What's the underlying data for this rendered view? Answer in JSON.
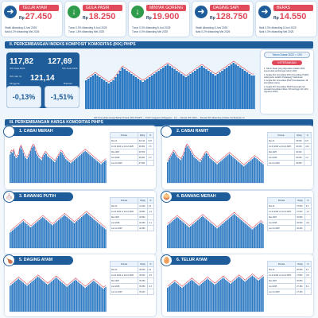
{
  "cards": [
    {
      "name": "TELUR AYAM",
      "currency": "Rp",
      "price": "27.450",
      "arrow": "➜",
      "color": "#1e5d99",
      "note1": "Stabil dibanding 8 Juni 2025",
      "note2": "Naik 6,2% dibanding Mei 2025"
    },
    {
      "name": "GULA PASIR",
      "currency": "Rp",
      "price": "18.250",
      "arrow": "↓",
      "color": "#2e9c4a",
      "note1": "Turun 0,3% dibanding 8 Juni 2025",
      "note2": "Turun 1,8% dibanding Mei 2025"
    },
    {
      "name": "MINYAK GORENG",
      "currency": "Rp",
      "price": "19.900",
      "arrow": "↓",
      "color": "#2e9c4a",
      "note1": "Turun 0,3% dibanding 8 Juni 2025",
      "note2": "Turun 0,3% dibanding Mei 2025"
    },
    {
      "name": "DAGING SAPI",
      "currency": "Rp",
      "price": "128.750",
      "arrow": "➜",
      "color": "#1e5d99",
      "note1": "Stabil dibanding 8 Juni 2025",
      "note2": "Naik 0,2% dibanding Mei 2025"
    },
    {
      "name": "BERAS",
      "currency": "Rp",
      "price": "14.550",
      "arrow": "➜",
      "color": "#1e5d99",
      "note1": "Naik 0,3% dibanding 8 Juni 2025",
      "note2": "Naik 0,3% dibanding Mei 2025"
    }
  ],
  "section2": {
    "title": "II. PERKEMBANGAN INDEKS KOMPOSIT KOMODITAS (IKK) PIHPS"
  },
  "ikk": {
    "v1": "117,82",
    "l1": "IKK Awal 2024",
    "v2": "127,69",
    "l2": "IKK Awal 2025",
    "v3": "121,14",
    "l3": "IKK Hari Ini",
    "c1": "-0,13%",
    "c1label": "Mingguan",
    "c2": "-1,51%",
    "c2label": "Bulanan"
  },
  "legend": "IKK Komoditas Harga Bahan Pokok (IKK) PIHPS  — Profil mingguan (Mingguan . ini)  — Rerata IKK 2024  — Rerata IKK dibanding (Indeks ini) Bulanan ini",
  "notes": {
    "badge": "Tahun Dasar 2022 = 100",
    "title": "KETERANGAN",
    "items": [
      "1. Tahun dasar yang digunakan adalah 2022, sesuai data perhitungan tahun 2022",
      "2. Angka IKK Komoditas (IKK) Komoditas PIHPS pada posisi terakhir Pedagang Tradisional",
      "3. Angka IKK Komoditas PIHPS berdasarkan 18 komoditas utama",
      "4. Angka IKK Komoditas PIHPS terendah 4/1 tercatat Komoditas Inflasi, IKK tertinggi 121,14% (Agustus 2025)"
    ]
  },
  "section3": {
    "title": "III. PERKEMBANGAN HARGA KOMODITAS PIHPS"
  },
  "panels": [
    {
      "title": "1. CABAI MERAH",
      "icon": "🌶",
      "hdr": [
        "Periode",
        "Rp/kg",
        "%"
      ],
      "rows": [
        [
          "Mei 24",
          "52.140",
          "0,07"
        ],
        [
          "21-31 2024 vs 10-14 2025",
          "48.000",
          "-7,9"
        ],
        [
          "Mei 2025",
          "38.750",
          ""
        ],
        [
          "Juni 2025",
          "38.250",
          "-1,3"
        ],
        [
          "Juni Ini 2025",
          "37.500",
          ""
        ]
      ],
      "chart_data": {
        "type": "bar",
        "values": [
          55,
          60,
          58,
          62,
          52,
          48,
          50,
          54,
          66,
          70,
          64,
          58,
          52,
          48,
          46,
          50,
          56,
          62,
          68,
          72,
          70,
          62,
          56,
          52,
          48,
          46,
          44,
          50,
          54,
          58,
          56,
          52,
          50,
          48,
          46,
          44,
          42,
          40,
          44,
          48,
          52,
          56,
          60,
          58,
          54,
          50,
          46,
          44,
          42,
          40,
          38,
          40,
          42,
          44,
          46,
          48,
          50,
          52,
          54,
          56,
          58,
          60,
          62,
          60,
          58,
          56,
          54,
          52,
          50,
          48,
          46,
          44,
          42,
          40,
          38,
          36,
          38,
          40,
          42,
          44
        ],
        "ylim": [
          0,
          80
        ]
      }
    },
    {
      "title": "2. CABAI RAWIT",
      "icon": "🌶",
      "hdr": [
        "Periode",
        "Rp/kg",
        "%"
      ],
      "rows": [
        [
          "Mei 24",
          "49.500",
          "0,07"
        ],
        [
          "21-31 2024 vs 10-14 2025",
          "43.000",
          "-13,1"
        ],
        [
          "Mei 2025",
          "36.500",
          ""
        ],
        [
          "Juni 2025",
          "36.050",
          "-1,2"
        ],
        [
          "Juni Ini 2025",
          "35.850",
          ""
        ]
      ],
      "chart_data": {
        "type": "bar",
        "values": [
          40,
          44,
          48,
          52,
          56,
          60,
          58,
          54,
          50,
          48,
          46,
          44,
          48,
          52,
          60,
          68,
          72,
          70,
          66,
          62,
          58,
          54,
          50,
          48,
          46,
          44,
          42,
          40,
          44,
          48,
          52,
          56,
          58,
          56,
          52,
          48,
          46,
          44,
          42,
          40,
          38,
          36,
          38,
          40,
          42,
          44,
          46,
          48,
          50,
          52,
          54,
          56,
          54,
          52,
          50,
          48,
          46,
          44,
          42,
          40,
          38,
          36,
          34,
          32,
          34,
          36,
          38,
          40,
          42,
          44,
          46,
          48,
          50,
          48,
          46,
          44,
          42,
          40,
          38,
          36
        ],
        "ylim": [
          0,
          80
        ]
      }
    },
    {
      "title": "3. BAWANG PUTIH",
      "icon": "🧄",
      "hdr": [
        "Periode",
        "Rp/kg",
        "%"
      ],
      "rows": [
        [
          "Mei 24",
          "41.250",
          "0,4"
        ],
        [
          "21-31 2024 vs 10-14 2025",
          "40.850",
          "-1,0"
        ],
        [
          "Mei 2025",
          "40.500",
          ""
        ],
        [
          "Juni 2025",
          "40.450",
          "-0,1"
        ],
        [
          "Juni Ini 2025",
          "40.350",
          ""
        ]
      ],
      "chart_data": {
        "type": "bar",
        "values": [
          30,
          32,
          34,
          36,
          38,
          40,
          42,
          44,
          46,
          48,
          50,
          52,
          50,
          48,
          46,
          44,
          42,
          40,
          42,
          44,
          46,
          48,
          50,
          52,
          54,
          56,
          58,
          60,
          58,
          56,
          54,
          52,
          50,
          48,
          46,
          44,
          46,
          48,
          50,
          52,
          54,
          56,
          58,
          60,
          62,
          64,
          62,
          60,
          58,
          56,
          54,
          52,
          50,
          48,
          50,
          52,
          54,
          56,
          58,
          60,
          62,
          64,
          66,
          68,
          66,
          64,
          62,
          60,
          58,
          56,
          54,
          52,
          50,
          48,
          46,
          44,
          42,
          40,
          38,
          36
        ],
        "ylim": [
          0,
          80
        ]
      }
    },
    {
      "title": "4. BAWANG MERAH",
      "icon": "🧅",
      "hdr": [
        "Periode",
        "Rp/kg",
        "%"
      ],
      "rows": [
        [
          "Mei 24",
          "37.500",
          "0,3"
        ],
        [
          "21-31 2024 vs 10-14 2025",
          "37.000",
          "-1,3"
        ],
        [
          "Mei 2025",
          "36.850",
          ""
        ],
        [
          "Juni 2025",
          "36.500",
          "-0,9"
        ],
        [
          "Juni Ini 2025",
          "36.250",
          ""
        ]
      ],
      "chart_data": {
        "type": "bar",
        "values": [
          44,
          46,
          48,
          50,
          52,
          54,
          56,
          58,
          60,
          58,
          56,
          54,
          52,
          50,
          48,
          46,
          44,
          42,
          40,
          42,
          44,
          46,
          48,
          50,
          52,
          54,
          56,
          58,
          60,
          62,
          60,
          58,
          56,
          54,
          52,
          50,
          48,
          46,
          44,
          42,
          40,
          38,
          40,
          42,
          44,
          46,
          48,
          50,
          52,
          54,
          56,
          58,
          60,
          62,
          64,
          66,
          64,
          62,
          60,
          58,
          56,
          54,
          52,
          50,
          48,
          46,
          44,
          42,
          40,
          38,
          36,
          38,
          40,
          42,
          44,
          46,
          48,
          50,
          48,
          46
        ],
        "ylim": [
          0,
          80
        ]
      }
    },
    {
      "title": "5. DAGING AYAM",
      "icon": "🍗",
      "hdr": [
        "Periode",
        "Rp/kg",
        "%"
      ],
      "rows": [
        [
          "Mei 24",
          "38.250",
          "0,2"
        ],
        [
          "21-31 2024 vs 10-14 2025",
          "36.900",
          "-3,5"
        ],
        [
          "Mei 2025",
          "35.450",
          ""
        ],
        [
          "Juni 2025",
          "35.350",
          "-0,3"
        ],
        [
          "Juni Ini 2025",
          "35.200",
          ""
        ]
      ],
      "chart_data": {
        "type": "bar",
        "values": [
          50,
          52,
          54,
          56,
          58,
          60,
          62,
          64,
          62,
          60,
          58,
          56,
          54,
          52,
          50,
          52,
          54,
          56,
          58,
          60,
          62,
          64,
          66,
          68,
          66,
          64,
          62,
          60,
          58,
          56,
          54,
          52,
          54,
          56,
          58,
          60,
          62,
          64,
          66,
          64,
          62,
          60,
          58,
          56,
          54,
          52,
          50,
          48,
          50,
          52,
          54,
          56,
          58,
          60,
          62,
          60,
          58,
          56,
          54,
          52,
          50,
          48,
          46,
          48,
          50,
          52,
          54,
          56,
          58,
          60,
          58,
          56,
          54,
          52,
          50,
          48,
          46,
          44,
          46,
          48
        ],
        "ylim": [
          0,
          80
        ]
      }
    },
    {
      "title": "6. TELUR AYAM",
      "icon": "🥚",
      "hdr": [
        "Periode",
        "Rp/kg",
        "%"
      ],
      "rows": [
        [
          "Mei 24",
          "28.050",
          "0,2"
        ],
        [
          "21-31 2024 vs 10-14 2025",
          "27.800",
          "-0,9"
        ],
        [
          "Mei 2025",
          "25.850",
          ""
        ],
        [
          "Juni 2025",
          "27.450",
          "6,2"
        ],
        [
          "Juni Ini 2025",
          "27.450",
          ""
        ]
      ],
      "chart_data": {
        "type": "bar",
        "values": [
          46,
          48,
          50,
          52,
          54,
          56,
          58,
          56,
          54,
          52,
          50,
          48,
          46,
          48,
          50,
          52,
          54,
          56,
          58,
          60,
          62,
          60,
          58,
          56,
          54,
          52,
          50,
          52,
          54,
          56,
          58,
          60,
          62,
          64,
          62,
          60,
          58,
          56,
          54,
          52,
          54,
          56,
          58,
          60,
          62,
          64,
          66,
          64,
          62,
          60,
          58,
          56,
          54,
          56,
          58,
          60,
          62,
          64,
          66,
          68,
          66,
          64,
          62,
          60,
          58,
          60,
          62,
          64,
          66,
          68,
          70,
          68,
          66,
          64,
          62,
          60,
          62,
          64,
          66,
          68
        ],
        "ylim": [
          0,
          80
        ]
      }
    }
  ],
  "ikk_chart": {
    "type": "bar",
    "values": [
      118,
      119,
      120,
      121,
      122,
      121,
      120,
      119,
      118,
      117,
      116,
      117,
      118,
      120,
      122,
      124,
      126,
      125,
      124,
      123,
      122,
      121,
      120,
      119,
      118,
      117,
      118,
      119,
      120,
      121,
      122,
      123,
      124,
      125,
      126,
      127,
      128,
      127,
      126,
      125,
      124,
      123,
      122,
      121,
      120,
      121,
      122,
      123,
      124,
      125,
      126,
      127,
      126,
      125,
      124,
      123,
      122,
      121,
      122,
      123,
      124,
      125,
      126,
      127,
      128,
      129,
      128,
      127,
      126,
      125,
      124,
      123,
      122,
      121,
      121
    ],
    "ylim": [
      100,
      135
    ]
  }
}
